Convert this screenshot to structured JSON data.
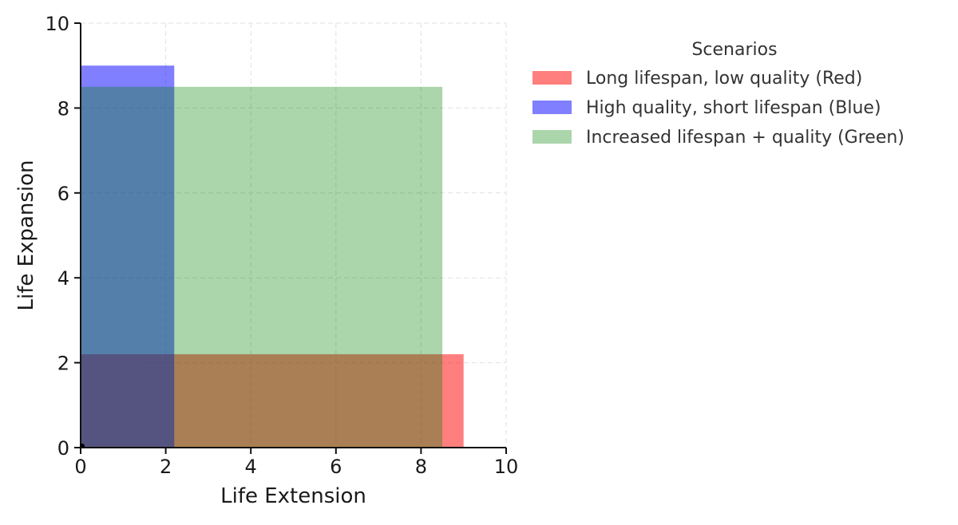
{
  "chart_data": {
    "type": "bar",
    "title": "",
    "xlabel": "Life Extension",
    "ylabel": "Life Expansion",
    "xlim": [
      0,
      10
    ],
    "ylim": [
      0,
      10
    ],
    "xticks": [
      0,
      2,
      4,
      6,
      8,
      10
    ],
    "yticks": [
      0,
      2,
      4,
      6,
      8,
      10
    ],
    "grid": true,
    "legend": {
      "title": "Scenarios",
      "placement": "outside-right"
    },
    "series": [
      {
        "name": "Long lifespan, low quality (Red)",
        "color": "#ff0000",
        "opacity": 0.5,
        "rect": {
          "x0": 0,
          "x1": 9,
          "y0": 0,
          "y1": 2.2
        }
      },
      {
        "name": "High quality, short lifespan (Blue)",
        "color": "#0000ff",
        "opacity": 0.5,
        "rect": {
          "x0": 0,
          "x1": 2.2,
          "y0": 0,
          "y1": 9
        }
      },
      {
        "name": "Increased lifespan + quality (Green)",
        "color": "#008000",
        "opacity": 0.33,
        "rect": {
          "x0": 0,
          "x1": 8.5,
          "y0": 0,
          "y1": 8.5
        }
      }
    ]
  }
}
